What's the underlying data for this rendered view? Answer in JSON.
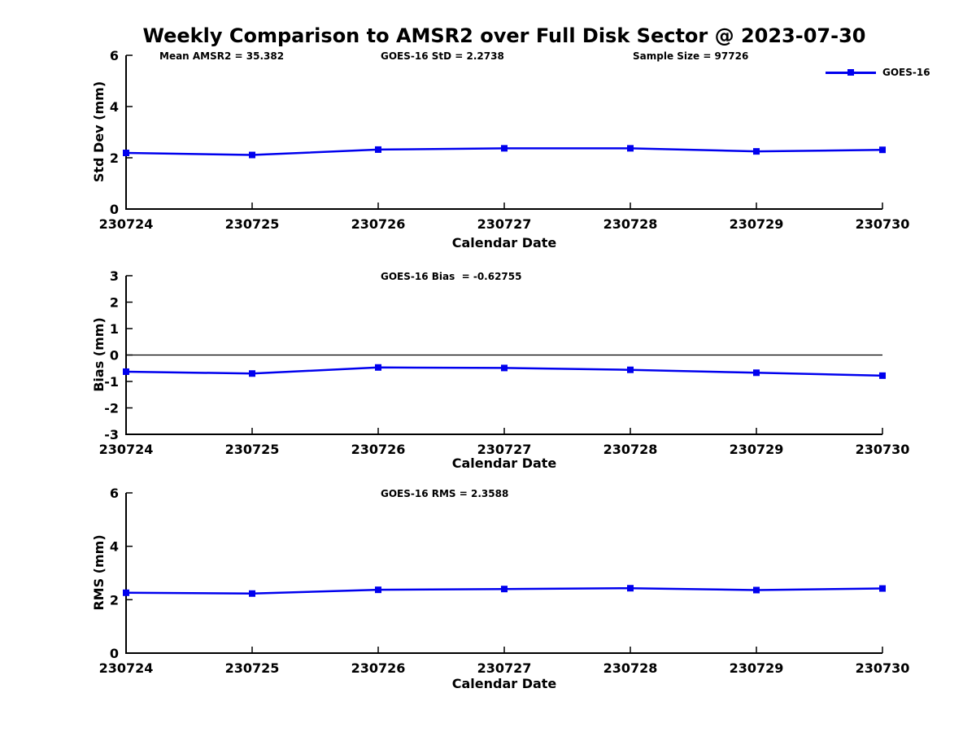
{
  "title": "Weekly Comparison to AMSR2 over Full Disk Sector @ 2023-07-30",
  "legend": {
    "label": "GOES-16"
  },
  "colors": {
    "line": "#0000EE",
    "axis": "#000000",
    "zero_line": "#000000"
  },
  "chart_data": [
    {
      "type": "line",
      "ylabel": "Std Dev (mm)",
      "xlabel": "Calendar Date",
      "categories": [
        "230724",
        "230725",
        "230726",
        "230727",
        "230728",
        "230729",
        "230730"
      ],
      "ylim": [
        0,
        6
      ],
      "yticks": [
        0,
        2,
        4,
        6
      ],
      "grid": false,
      "legend_position": "top-right-outside",
      "annotations": [
        {
          "text": "Mean AMSR2 = 35.382"
        },
        {
          "text": "GOES-16 StD = 2.2738"
        },
        {
          "text": "Sample Size = 97726"
        }
      ],
      "series": [
        {
          "name": "GOES-16",
          "marker": "square",
          "values": [
            2.19,
            2.11,
            2.32,
            2.37,
            2.37,
            2.25,
            2.31
          ]
        }
      ]
    },
    {
      "type": "line",
      "ylabel": "Bias (mm)",
      "xlabel": "Calendar Date",
      "categories": [
        "230724",
        "230725",
        "230726",
        "230727",
        "230728",
        "230729",
        "230730"
      ],
      "ylim": [
        -3,
        3
      ],
      "yticks": [
        3,
        2,
        1,
        0,
        -1,
        -2,
        -3
      ],
      "grid": false,
      "zero_line": true,
      "annotations": [
        {
          "text": "GOES-16 Bias  = -0.62755"
        }
      ],
      "series": [
        {
          "name": "GOES-16",
          "marker": "square",
          "values": [
            -0.63,
            -0.7,
            -0.47,
            -0.49,
            -0.56,
            -0.67,
            -0.78
          ]
        }
      ]
    },
    {
      "type": "line",
      "ylabel": "RMS (mm)",
      "xlabel": "Calendar Date",
      "categories": [
        "230724",
        "230725",
        "230726",
        "230727",
        "230728",
        "230729",
        "230730"
      ],
      "ylim": [
        0,
        6
      ],
      "yticks": [
        0,
        2,
        4,
        6
      ],
      "grid": false,
      "annotations": [
        {
          "text": "GOES-16 RMS = 2.3588"
        }
      ],
      "series": [
        {
          "name": "GOES-16",
          "marker": "square",
          "values": [
            2.26,
            2.23,
            2.37,
            2.4,
            2.43,
            2.36,
            2.42
          ]
        }
      ]
    }
  ]
}
